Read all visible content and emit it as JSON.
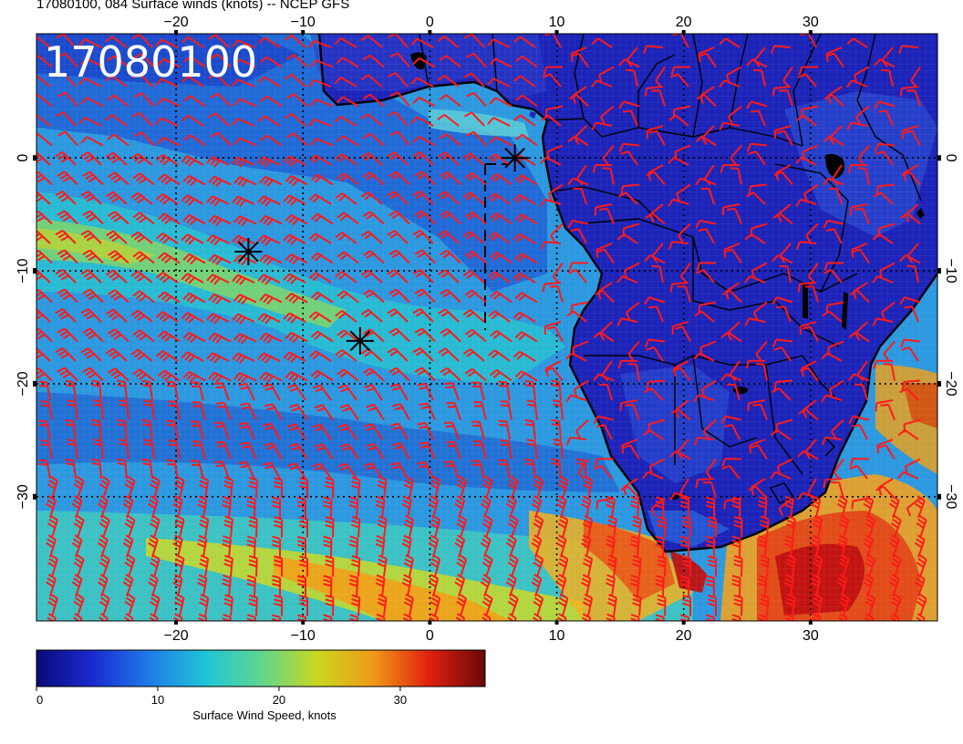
{
  "title": "17080100, 084 Surface winds (knots) -- NCEP GFS",
  "stamp": "17080100",
  "map": {
    "lon_range": [
      -31,
      40
    ],
    "lat_range": [
      -41,
      11
    ],
    "lon_ticks": [
      {
        "value": -20,
        "label": "−20"
      },
      {
        "value": -10,
        "label": "−10"
      },
      {
        "value": 0,
        "label": "0"
      },
      {
        "value": 10,
        "label": "10"
      },
      {
        "value": 20,
        "label": "20"
      },
      {
        "value": 30,
        "label": "30"
      }
    ],
    "lat_ticks": [
      {
        "value": 0,
        "label": "0"
      },
      {
        "value": -10,
        "label": "−10"
      },
      {
        "value": -20,
        "label": "−20"
      },
      {
        "value": -30,
        "label": "−30"
      }
    ],
    "grid_dotted": true,
    "markers": [
      {
        "name": "storm-marker-1",
        "lon": 6.7,
        "lat": 0.0
      },
      {
        "name": "storm-marker-2",
        "lon": -14.3,
        "lat": -8.3
      },
      {
        "name": "storm-marker-3",
        "lon": -5.5,
        "lat": -16.2
      }
    ],
    "barb_color": "#ff1a1a",
    "land_color": "#1c23b8"
  },
  "colorbar": {
    "label": "Surface Wind Speed, knots",
    "min": 0,
    "max": 37,
    "ticks": [
      {
        "value": 0,
        "label": "0"
      },
      {
        "value": 10,
        "label": "10"
      },
      {
        "value": 20,
        "label": "20"
      },
      {
        "value": 30,
        "label": "30"
      }
    ],
    "stops": [
      "#0a0a78",
      "#1a2ad0",
      "#1f7ae8",
      "#1fc4d8",
      "#5ed690",
      "#c8d820",
      "#f09a18",
      "#e02010",
      "#6a0808"
    ]
  }
}
